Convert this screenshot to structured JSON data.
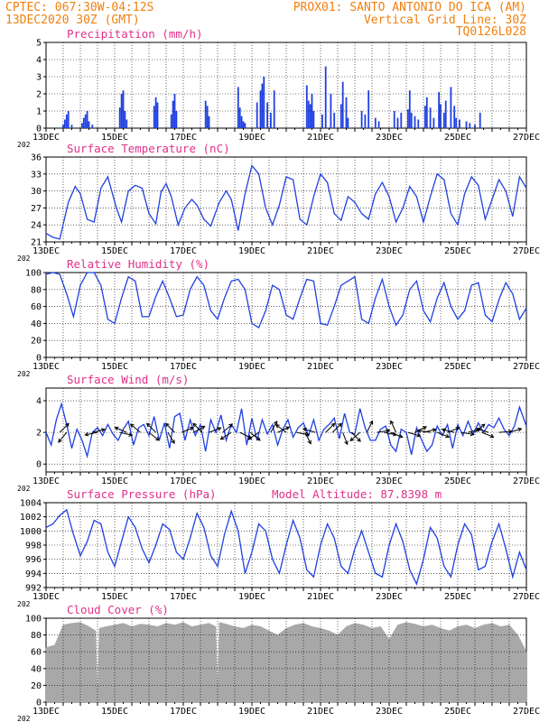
{
  "header": {
    "line1_left": "CPTEC:   067:30W-04:12S",
    "line2_left": "13DEC2020 30Z (GMT)",
    "line1_right": "PROX01: SANTO ANTONIO DO ICA (AM)",
    "line2_right": "Vertical Grid Line: 30Z",
    "line3_right": "TQ0126L028"
  },
  "colors": {
    "header": "#f08010",
    "panel_title": "#e0308a",
    "series": "#2040e0",
    "cloud": "#a8a8a8",
    "grid": "#000000",
    "wind_arrow": "#000000"
  },
  "chart_data": [
    {
      "type": "bar",
      "title": "Precipitation (mm/h)",
      "ylim": [
        0,
        5
      ],
      "yticks": [
        "0",
        "1",
        "2",
        "3",
        "4",
        "5"
      ],
      "x_ticklabels": [
        "13DEC",
        "15DEC",
        "17DEC",
        "19DEC",
        "21DEC",
        "23DEC",
        "25DEC",
        "27DEC"
      ],
      "year_label": "202",
      "grid": "dotted",
      "x": [
        1.0,
        1.1,
        1.2,
        1.3,
        1.5,
        2.1,
        2.2,
        2.3,
        2.4,
        2.5,
        2.7,
        4.3,
        4.4,
        4.5,
        4.6,
        4.7,
        6.3,
        6.4,
        6.5,
        7.3,
        7.4,
        7.5,
        7.6,
        9.3,
        9.4,
        9.5,
        11.2,
        11.3,
        11.4,
        11.5,
        11.6,
        12.3,
        12.5,
        12.6,
        12.7,
        12.9,
        13.1,
        13.3,
        15.2,
        15.3,
        15.4,
        15.5,
        15.6,
        16.1,
        16.3,
        16.6,
        16.8,
        17.2,
        17.3,
        17.5,
        17.6,
        18.4,
        18.6,
        18.8,
        19.2,
        19.4,
        20.3,
        20.5,
        20.7,
        21.1,
        21.2,
        21.3,
        21.5,
        21.7,
        22.1,
        22.2,
        22.4,
        22.6,
        22.9,
        23.0,
        23.2,
        23.3,
        23.6,
        23.8,
        23.9,
        24.1,
        24.5,
        24.7,
        25.0,
        25.3
      ],
      "values": [
        0.2,
        0.5,
        0.8,
        1.0,
        0.2,
        0.3,
        0.6,
        0.8,
        1.0,
        0.4,
        0.2,
        1.2,
        2.0,
        2.2,
        1.0,
        0.5,
        1.3,
        1.8,
        1.5,
        0.8,
        1.6,
        2.0,
        1.0,
        1.6,
        1.3,
        0.7,
        2.4,
        1.2,
        0.7,
        0.4,
        0.3,
        1.5,
        2.2,
        2.6,
        3.0,
        1.5,
        0.9,
        2.2,
        2.5,
        1.6,
        1.4,
        2.0,
        1.0,
        0.8,
        3.6,
        2.0,
        0.9,
        1.4,
        2.7,
        1.8,
        0.6,
        1.0,
        0.8,
        2.2,
        0.6,
        0.4,
        1.0,
        0.6,
        0.9,
        1.1,
        2.2,
        0.9,
        0.7,
        0.5,
        1.3,
        1.8,
        1.2,
        0.6,
        2.1,
        1.4,
        0.9,
        1.6,
        2.4,
        1.3,
        0.6,
        0.5,
        0.4,
        0.3,
        0.2,
        0.9
      ]
    },
    {
      "type": "line",
      "title": "Surface Temperature (nC)",
      "ylim": [
        21,
        36
      ],
      "yticks": [
        "21",
        "24",
        "27",
        "30",
        "33",
        "36"
      ],
      "x_ticklabels": [
        "13DEC",
        "15DEC",
        "17DEC",
        "19DEC",
        "21DEC",
        "23DEC",
        "25DEC",
        "27DEC"
      ],
      "year_label": "202",
      "grid": "dotted",
      "x": [
        0.0,
        0.4,
        0.8,
        1.3,
        1.7,
        2.0,
        2.4,
        2.8,
        3.2,
        3.6,
        4.1,
        4.4,
        4.8,
        5.2,
        5.6,
        6.0,
        6.4,
        6.7,
        7.0,
        7.3,
        7.7,
        8.1,
        8.5,
        8.8,
        9.2,
        9.6,
        10.1,
        10.5,
        10.8,
        11.2,
        11.6,
        12.0,
        12.4,
        12.8,
        13.2,
        13.6,
        14.0,
        14.4,
        14.8,
        15.2,
        15.6,
        16.0,
        16.4,
        16.8,
        17.2,
        17.6,
        18.0,
        18.4,
        18.8,
        19.2,
        19.6,
        20.0,
        20.4,
        20.8,
        21.2,
        21.6,
        22.0,
        22.4,
        22.8,
        23.2,
        23.6,
        24.0,
        24.4,
        24.8,
        25.2,
        25.6,
        26.0,
        26.4,
        26.8,
        27.2,
        27.6,
        28.0
      ],
      "values": [
        22.5,
        21.8,
        21.5,
        28.0,
        30.8,
        29.5,
        25.0,
        24.5,
        30.5,
        32.5,
        27.0,
        24.5,
        30.0,
        31.0,
        30.5,
        26.0,
        24.2,
        29.8,
        31.3,
        29.0,
        24.0,
        27.0,
        28.5,
        27.5,
        25.0,
        23.8,
        28.0,
        30.0,
        28.5,
        23.0,
        29.5,
        34.5,
        33.0,
        27.0,
        24.0,
        27.5,
        32.5,
        32.0,
        25.0,
        24.0,
        29.0,
        33.0,
        31.5,
        26.0,
        24.8,
        29.0,
        28.0,
        26.0,
        25.0,
        29.5,
        31.5,
        29.0,
        24.5,
        27.0,
        30.8,
        29.0,
        24.5,
        29.0,
        33.0,
        32.0,
        26.0,
        24.0,
        29.5,
        32.5,
        31.0,
        25.0,
        28.5,
        32.0,
        30.0,
        25.5,
        32.5,
        30.5
      ]
    },
    {
      "type": "line",
      "title": "Relative Humidity (%)",
      "ylim": [
        0,
        100
      ],
      "yticks": [
        "0",
        "20",
        "40",
        "60",
        "80",
        "100"
      ],
      "x_ticklabels": [
        "13DEC",
        "15DEC",
        "17DEC",
        "19DEC",
        "21DEC",
        "23DEC",
        "25DEC",
        "27DEC"
      ],
      "year_label": "202",
      "grid": "dotted",
      "x": [
        0.0,
        0.4,
        0.8,
        1.2,
        1.6,
        2.0,
        2.4,
        2.8,
        3.2,
        3.6,
        4.0,
        4.4,
        4.8,
        5.2,
        5.6,
        6.0,
        6.4,
        6.8,
        7.2,
        7.6,
        8.0,
        8.4,
        8.8,
        9.2,
        9.6,
        10.0,
        10.4,
        10.8,
        11.2,
        11.6,
        12.0,
        12.4,
        12.8,
        13.2,
        13.6,
        14.0,
        14.4,
        14.8,
        15.2,
        15.6,
        16.0,
        16.4,
        16.8,
        17.2,
        17.6,
        18.0,
        18.4,
        18.8,
        19.2,
        19.6,
        20.0,
        20.4,
        20.8,
        21.2,
        21.6,
        22.0,
        22.4,
        22.8,
        23.2,
        23.6,
        24.0,
        24.4,
        24.8,
        25.2,
        25.6,
        26.0,
        26.4,
        26.8,
        27.2,
        27.6,
        28.0
      ],
      "values": [
        98,
        100,
        98,
        75,
        48,
        85,
        100,
        100,
        85,
        45,
        40,
        70,
        95,
        90,
        48,
        48,
        72,
        90,
        70,
        48,
        50,
        80,
        95,
        85,
        55,
        45,
        70,
        90,
        92,
        80,
        40,
        35,
        55,
        85,
        80,
        50,
        45,
        70,
        92,
        90,
        40,
        38,
        60,
        85,
        90,
        95,
        45,
        40,
        70,
        92,
        60,
        38,
        50,
        80,
        90,
        55,
        42,
        70,
        88,
        60,
        45,
        55,
        85,
        88,
        50,
        42,
        68,
        88,
        75,
        45,
        58
      ]
    },
    {
      "type": "line",
      "title": "Surface Wind (m/s)",
      "ylim": [
        -0.5,
        4.8
      ],
      "yticks": [
        "0",
        "2",
        "4"
      ],
      "x_ticklabels": [
        "13DEC",
        "15DEC",
        "17DEC",
        "19DEC",
        "21DEC",
        "23DEC",
        "25DEC",
        "27DEC"
      ],
      "year_label": "202",
      "grid": "dotted",
      "x": [
        0.0,
        0.3,
        0.6,
        0.9,
        1.2,
        1.5,
        1.8,
        2.1,
        2.4,
        2.7,
        3.0,
        3.3,
        3.6,
        3.9,
        4.2,
        4.5,
        4.8,
        5.1,
        5.4,
        5.7,
        6.0,
        6.3,
        6.6,
        6.9,
        7.2,
        7.5,
        7.8,
        8.1,
        8.4,
        8.7,
        9.0,
        9.3,
        9.6,
        9.9,
        10.2,
        10.5,
        10.8,
        11.1,
        11.4,
        11.7,
        12.0,
        12.3,
        12.6,
        12.9,
        13.2,
        13.5,
        13.8,
        14.1,
        14.4,
        14.7,
        15.0,
        15.3,
        15.6,
        15.9,
        16.2,
        16.5,
        16.8,
        17.1,
        17.4,
        17.7,
        18.0,
        18.3,
        18.6,
        18.9,
        19.2,
        19.5,
        19.8,
        20.1,
        20.4,
        20.7,
        21.0,
        21.3,
        21.6,
        21.9,
        22.2,
        22.5,
        22.8,
        23.1,
        23.4,
        23.7,
        24.0,
        24.3,
        24.6,
        24.9,
        25.2,
        25.5,
        25.8,
        26.1,
        26.4,
        26.7,
        27.0,
        27.3,
        27.6,
        28.0
      ],
      "values": [
        2.0,
        1.2,
        2.8,
        3.8,
        2.5,
        1.0,
        2.2,
        1.5,
        0.5,
        2.0,
        2.3,
        1.8,
        2.5,
        1.9,
        1.5,
        2.2,
        2.7,
        1.2,
        2.3,
        2.5,
        1.8,
        3.0,
        1.5,
        2.6,
        1.0,
        3.0,
        3.2,
        1.5,
        2.8,
        1.8,
        2.5,
        0.8,
        2.8,
        2.0,
        3.1,
        1.5,
        2.5,
        2.0,
        3.5,
        1.2,
        2.9,
        1.5,
        2.8,
        1.9,
        2.5,
        1.2,
        2.2,
        2.8,
        1.7,
        2.3,
        2.6,
        1.8,
        2.8,
        1.5,
        2.2,
        2.5,
        2.9,
        1.6,
        3.2,
        2.0,
        1.9,
        3.5,
        2.3,
        1.5,
        1.5,
        2.2,
        2.4,
        1.2,
        0.8,
        2.2,
        2.0,
        0.6,
        2.3,
        1.5,
        0.8,
        1.2,
        2.4,
        1.8,
        2.5,
        1.0,
        2.5,
        1.8,
        2.7,
        1.9,
        2.6,
        2.0,
        2.5,
        2.3,
        2.9,
        2.2,
        1.8,
        2.4,
        3.6,
        2.4
      ]
    },
    {
      "type": "line",
      "title": "Surface Pressure (hPa)",
      "subtitle": "Model Altitude: 87.8398 m",
      "ylim": [
        992,
        1004
      ],
      "yticks": [
        "992",
        "994",
        "996",
        "998",
        "1000",
        "1002",
        "1004"
      ],
      "x_ticklabels": [
        "13DEC",
        "15DEC",
        "17DEC",
        "19DEC",
        "21DEC",
        "23DEC",
        "25DEC",
        "27DEC"
      ],
      "year_label": "202",
      "grid": "dotted",
      "x": [
        0.0,
        0.4,
        0.8,
        1.2,
        1.6,
        2.0,
        2.4,
        2.8,
        3.2,
        3.6,
        4.0,
        4.4,
        4.8,
        5.2,
        5.6,
        6.0,
        6.4,
        6.8,
        7.2,
        7.6,
        8.0,
        8.4,
        8.8,
        9.2,
        9.6,
        10.0,
        10.4,
        10.8,
        11.2,
        11.6,
        12.0,
        12.4,
        12.8,
        13.2,
        13.6,
        14.0,
        14.4,
        14.8,
        15.2,
        15.6,
        16.0,
        16.4,
        16.8,
        17.2,
        17.6,
        18.0,
        18.4,
        18.8,
        19.2,
        19.6,
        20.0,
        20.4,
        20.8,
        21.2,
        21.6,
        22.0,
        22.4,
        22.8,
        23.2,
        23.6,
        24.0,
        24.4,
        24.8,
        25.2,
        25.6,
        26.0,
        26.4,
        26.8,
        27.2,
        27.6,
        28.0
      ],
      "values": [
        1000.5,
        1001.0,
        1002.2,
        1003.0,
        999.5,
        996.5,
        998.5,
        1001.5,
        1001.0,
        997.0,
        995.0,
        998.5,
        1002.0,
        1000.5,
        997.5,
        995.5,
        998.0,
        1001.0,
        1000.2,
        997.0,
        996.0,
        999.0,
        1002.5,
        1000.5,
        996.5,
        995.0,
        999.5,
        1002.8,
        1000.0,
        994.0,
        997.0,
        1001.0,
        1000.0,
        996.0,
        994.0,
        998.0,
        1001.5,
        999.0,
        994.5,
        993.5,
        998.0,
        1001.0,
        999.0,
        995.0,
        994.0,
        997.5,
        1000.0,
        997.0,
        994.0,
        993.5,
        998.0,
        1001.0,
        998.5,
        994.5,
        992.5,
        996.0,
        1000.5,
        999.0,
        995.0,
        993.5,
        998.0,
        1001.0,
        999.5,
        994.5,
        995.0,
        998.5,
        1001.0,
        997.5,
        993.5,
        997.0,
        994.5
      ]
    },
    {
      "type": "area",
      "title": "Cloud Cover (%)",
      "ylim": [
        0,
        100
      ],
      "yticks": [
        "0",
        "20",
        "40",
        "60",
        "80",
        "100"
      ],
      "x_ticklabels": [
        "13DEC",
        "15DEC",
        "17DEC",
        "19DEC",
        "21DEC",
        "23DEC",
        "25DEC",
        "27DEC"
      ],
      "year_label": "202",
      "grid": "dotted",
      "x": [
        0.0,
        0.5,
        1.0,
        1.5,
        2.0,
        2.5,
        2.9,
        3.0,
        3.1,
        3.5,
        4.0,
        4.5,
        5.0,
        5.5,
        6.0,
        6.5,
        7.0,
        7.5,
        8.0,
        8.5,
        9.0,
        9.5,
        9.9,
        10.0,
        10.1,
        10.5,
        11.0,
        11.5,
        12.0,
        12.5,
        13.0,
        13.5,
        14.0,
        14.5,
        15.0,
        15.5,
        16.0,
        16.5,
        17.0,
        17.5,
        18.0,
        18.5,
        19.0,
        19.5,
        20.0,
        20.5,
        21.0,
        21.5,
        22.0,
        22.5,
        23.0,
        23.5,
        24.0,
        24.5,
        25.0,
        25.5,
        26.0,
        26.5,
        27.0,
        27.5,
        28.0
      ],
      "values": [
        65,
        68,
        92,
        94,
        95,
        90,
        85,
        5,
        88,
        90,
        92,
        94,
        90,
        93,
        92,
        90,
        94,
        92,
        95,
        90,
        92,
        94,
        90,
        8,
        95,
        93,
        90,
        88,
        92,
        90,
        85,
        80,
        88,
        92,
        94,
        90,
        88,
        85,
        80,
        90,
        94,
        92,
        88,
        90,
        75,
        92,
        95,
        93,
        90,
        92,
        88,
        85,
        90,
        92,
        88,
        92,
        94,
        90,
        92,
        80,
        60
      ]
    }
  ],
  "wind_arrows": {
    "x": [
      0.8,
      1.2,
      2.7,
      3.0,
      4.3,
      4.7,
      5.5,
      6.0,
      6.4,
      7.1,
      7.5,
      7.9,
      8.6,
      9.1,
      9.5,
      10.3,
      10.8,
      11.3,
      11.9,
      12.4,
      13.1,
      13.5,
      14.0,
      14.6,
      15.1,
      15.7,
      16.3,
      16.7,
      17.3,
      17.8,
      18.3,
      18.7,
      19.3,
      19.7,
      20.1,
      20.4,
      21.1,
      21.5,
      22.0,
      22.4,
      22.8,
      23.4,
      23.8,
      24.2,
      24.6,
      25.0,
      25.4,
      25.8,
      26.4,
      27.0
    ],
    "u": [
      1.0,
      -1.0,
      1.2,
      -1.0,
      1.3,
      -0.7,
      -1.2,
      1.0,
      -1.0,
      0.6,
      -0.8,
      1.2,
      1.1,
      -1.0,
      1.3,
      0.8,
      -1.1,
      0.8,
      1.0,
      -1.2,
      0.5,
      1.3,
      -0.8,
      1.0,
      0.5,
      -1.0,
      0.8,
      1.2,
      0.3,
      1.0,
      -0.8,
      0.5,
      1.2,
      1.0,
      1.2,
      -0.5,
      1.0,
      1.0,
      0.8,
      -1.2,
      1.0,
      1.0,
      -0.8,
      1.2,
      1.1,
      0.6,
      1.0,
      -1.0,
      1.2,
      1.0
    ],
    "v": [
      1.0,
      -1.2,
      0.3,
      -0.2,
      -0.3,
      0.3,
      1.0,
      -0.8,
      1.0,
      -1.0,
      0.8,
      0.5,
      0.6,
      1.0,
      0.5,
      0.7,
      -0.7,
      -0.4,
      -0.8,
      -0.8,
      0.9,
      0.6,
      0.6,
      -0.2,
      -1.0,
      0.3,
      0.8,
      1.2,
      -0.8,
      -1.0,
      -0.7,
      1.0,
      0.2,
      -0.2,
      -0.5,
      1.1,
      -0.3,
      0.5,
      0.2,
      0.2,
      -0.4,
      0.4,
      0.2,
      -0.2,
      0.3,
      0.5,
      -0.4,
      0.3,
      0.1,
      0.3
    ]
  }
}
